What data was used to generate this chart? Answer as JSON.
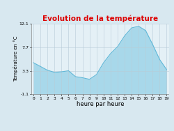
{
  "title": "Evolution de la température",
  "xlabel": "heure par heure",
  "ylabel": "Température en °C",
  "background_color": "#d8e8f0",
  "plot_bg_color": "#e4f0f6",
  "title_color": "#dd0000",
  "ylim": [
    -1.1,
    12.1
  ],
  "yticks": [
    -1.1,
    3.3,
    7.7,
    12.1
  ],
  "ytick_labels": [
    "-1.1",
    "3.3",
    "7.7",
    "12.1"
  ],
  "xticks": [
    0,
    1,
    2,
    3,
    4,
    5,
    6,
    7,
    8,
    9,
    10,
    11,
    12,
    13,
    14,
    15,
    16,
    17,
    18,
    19
  ],
  "hours": [
    0,
    1,
    2,
    3,
    4,
    5,
    6,
    7,
    8,
    9,
    10,
    11,
    12,
    13,
    14,
    15,
    16,
    17,
    18,
    19
  ],
  "temperatures": [
    4.8,
    4.1,
    3.4,
    3.0,
    3.1,
    3.3,
    2.2,
    2.0,
    1.7,
    2.6,
    4.8,
    6.5,
    7.8,
    9.8,
    11.3,
    11.6,
    10.8,
    8.2,
    5.4,
    3.5
  ],
  "fill_color": "#a8d8ea",
  "line_color": "#60b8d8",
  "line_width": 0.8,
  "grid_color": "#b8ccd8",
  "title_fontsize": 7.5,
  "xlabel_fontsize": 6,
  "ylabel_fontsize": 5,
  "tick_fontsize": 4.5
}
